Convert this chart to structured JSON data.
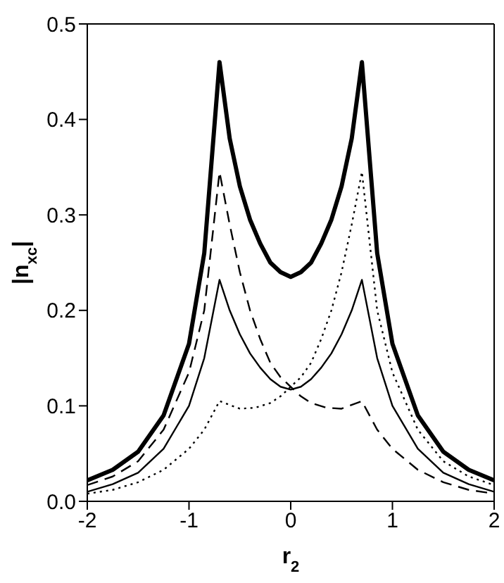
{
  "chart_data": {
    "type": "line",
    "xlabel": "r$_{2}$",
    "ylabel": "|n$_{xc}$|",
    "xlim": [
      -2,
      2
    ],
    "xticks": [
      -2,
      -1,
      0,
      1,
      2
    ],
    "ylim": [
      0,
      0.5
    ],
    "yticks": [
      {
        "value": 0,
        "label": "0.0"
      },
      {
        "value": 0.1,
        "label": "0.1"
      },
      {
        "value": 0.2,
        "label": "0.2"
      },
      {
        "value": 0.3,
        "label": "0.3"
      },
      {
        "value": 0.4,
        "label": "0.4"
      },
      {
        "value": 0.5,
        "label": "0.5"
      }
    ],
    "grid": false,
    "marker": "none",
    "series": [
      {
        "color": "#000000",
        "line_style": "solid",
        "x": [
          -2,
          -1.75,
          -1.5,
          -1.25,
          -1,
          -0.85,
          -0.7,
          -0.6,
          -0.5,
          -0.4,
          -0.3,
          -0.2,
          -0.1,
          0,
          0.1,
          0.2,
          0.3,
          0.4,
          0.5,
          0.6,
          0.7,
          0.85,
          1,
          1.25,
          1.5,
          1.75,
          2
        ],
        "values": [
          0.022,
          0.033,
          0.052,
          0.09,
          0.165,
          0.26,
          0.46,
          0.38,
          0.33,
          0.295,
          0.27,
          0.25,
          0.24,
          0.235,
          0.24,
          0.25,
          0.27,
          0.295,
          0.33,
          0.38,
          0.46,
          0.26,
          0.165,
          0.09,
          0.052,
          0.033,
          0.022
        ]
      },
      {
        "color": "#000000",
        "line_style": "solid",
        "x": [
          -2,
          -1.75,
          -1.5,
          -1.25,
          -1,
          -0.85,
          -0.7,
          -0.6,
          -0.5,
          -0.4,
          -0.3,
          -0.2,
          -0.1,
          0,
          0.1,
          0.2,
          0.3,
          0.4,
          0.5,
          0.6,
          0.7,
          0.85,
          1,
          1.25,
          1.5,
          1.75,
          2
        ],
        "values": [
          0.01,
          0.018,
          0.03,
          0.055,
          0.1,
          0.15,
          0.232,
          0.2,
          0.175,
          0.155,
          0.14,
          0.128,
          0.12,
          0.117,
          0.12,
          0.128,
          0.14,
          0.155,
          0.175,
          0.2,
          0.232,
          0.15,
          0.1,
          0.055,
          0.03,
          0.018,
          0.01
        ]
      },
      {
        "color": "#000000",
        "line_style": "dashed",
        "x": [
          -2,
          -1.75,
          -1.5,
          -1.25,
          -1,
          -0.85,
          -0.7,
          -0.6,
          -0.5,
          -0.4,
          -0.3,
          -0.2,
          -0.1,
          0,
          0.1,
          0.2,
          0.35,
          0.5,
          0.7,
          0.85,
          1,
          1.25,
          1.5,
          1.75,
          2
        ],
        "values": [
          0.017,
          0.026,
          0.042,
          0.075,
          0.135,
          0.2,
          0.345,
          0.29,
          0.24,
          0.2,
          0.17,
          0.145,
          0.13,
          0.12,
          0.11,
          0.103,
          0.098,
          0.097,
          0.105,
          0.075,
          0.055,
          0.033,
          0.02,
          0.012,
          0.008
        ]
      },
      {
        "color": "#000000",
        "line_style": "dotted",
        "x": [
          -2,
          -1.75,
          -1.5,
          -1.25,
          -1,
          -0.85,
          -0.7,
          -0.5,
          -0.35,
          -0.2,
          -0.1,
          0,
          0.1,
          0.2,
          0.3,
          0.4,
          0.5,
          0.6,
          0.7,
          0.85,
          1,
          1.25,
          1.5,
          1.75,
          2
        ],
        "values": [
          0.008,
          0.012,
          0.02,
          0.033,
          0.055,
          0.075,
          0.105,
          0.097,
          0.098,
          0.103,
          0.11,
          0.12,
          0.13,
          0.145,
          0.17,
          0.2,
          0.24,
          0.29,
          0.345,
          0.2,
          0.135,
          0.075,
          0.042,
          0.026,
          0.017
        ]
      }
    ]
  }
}
